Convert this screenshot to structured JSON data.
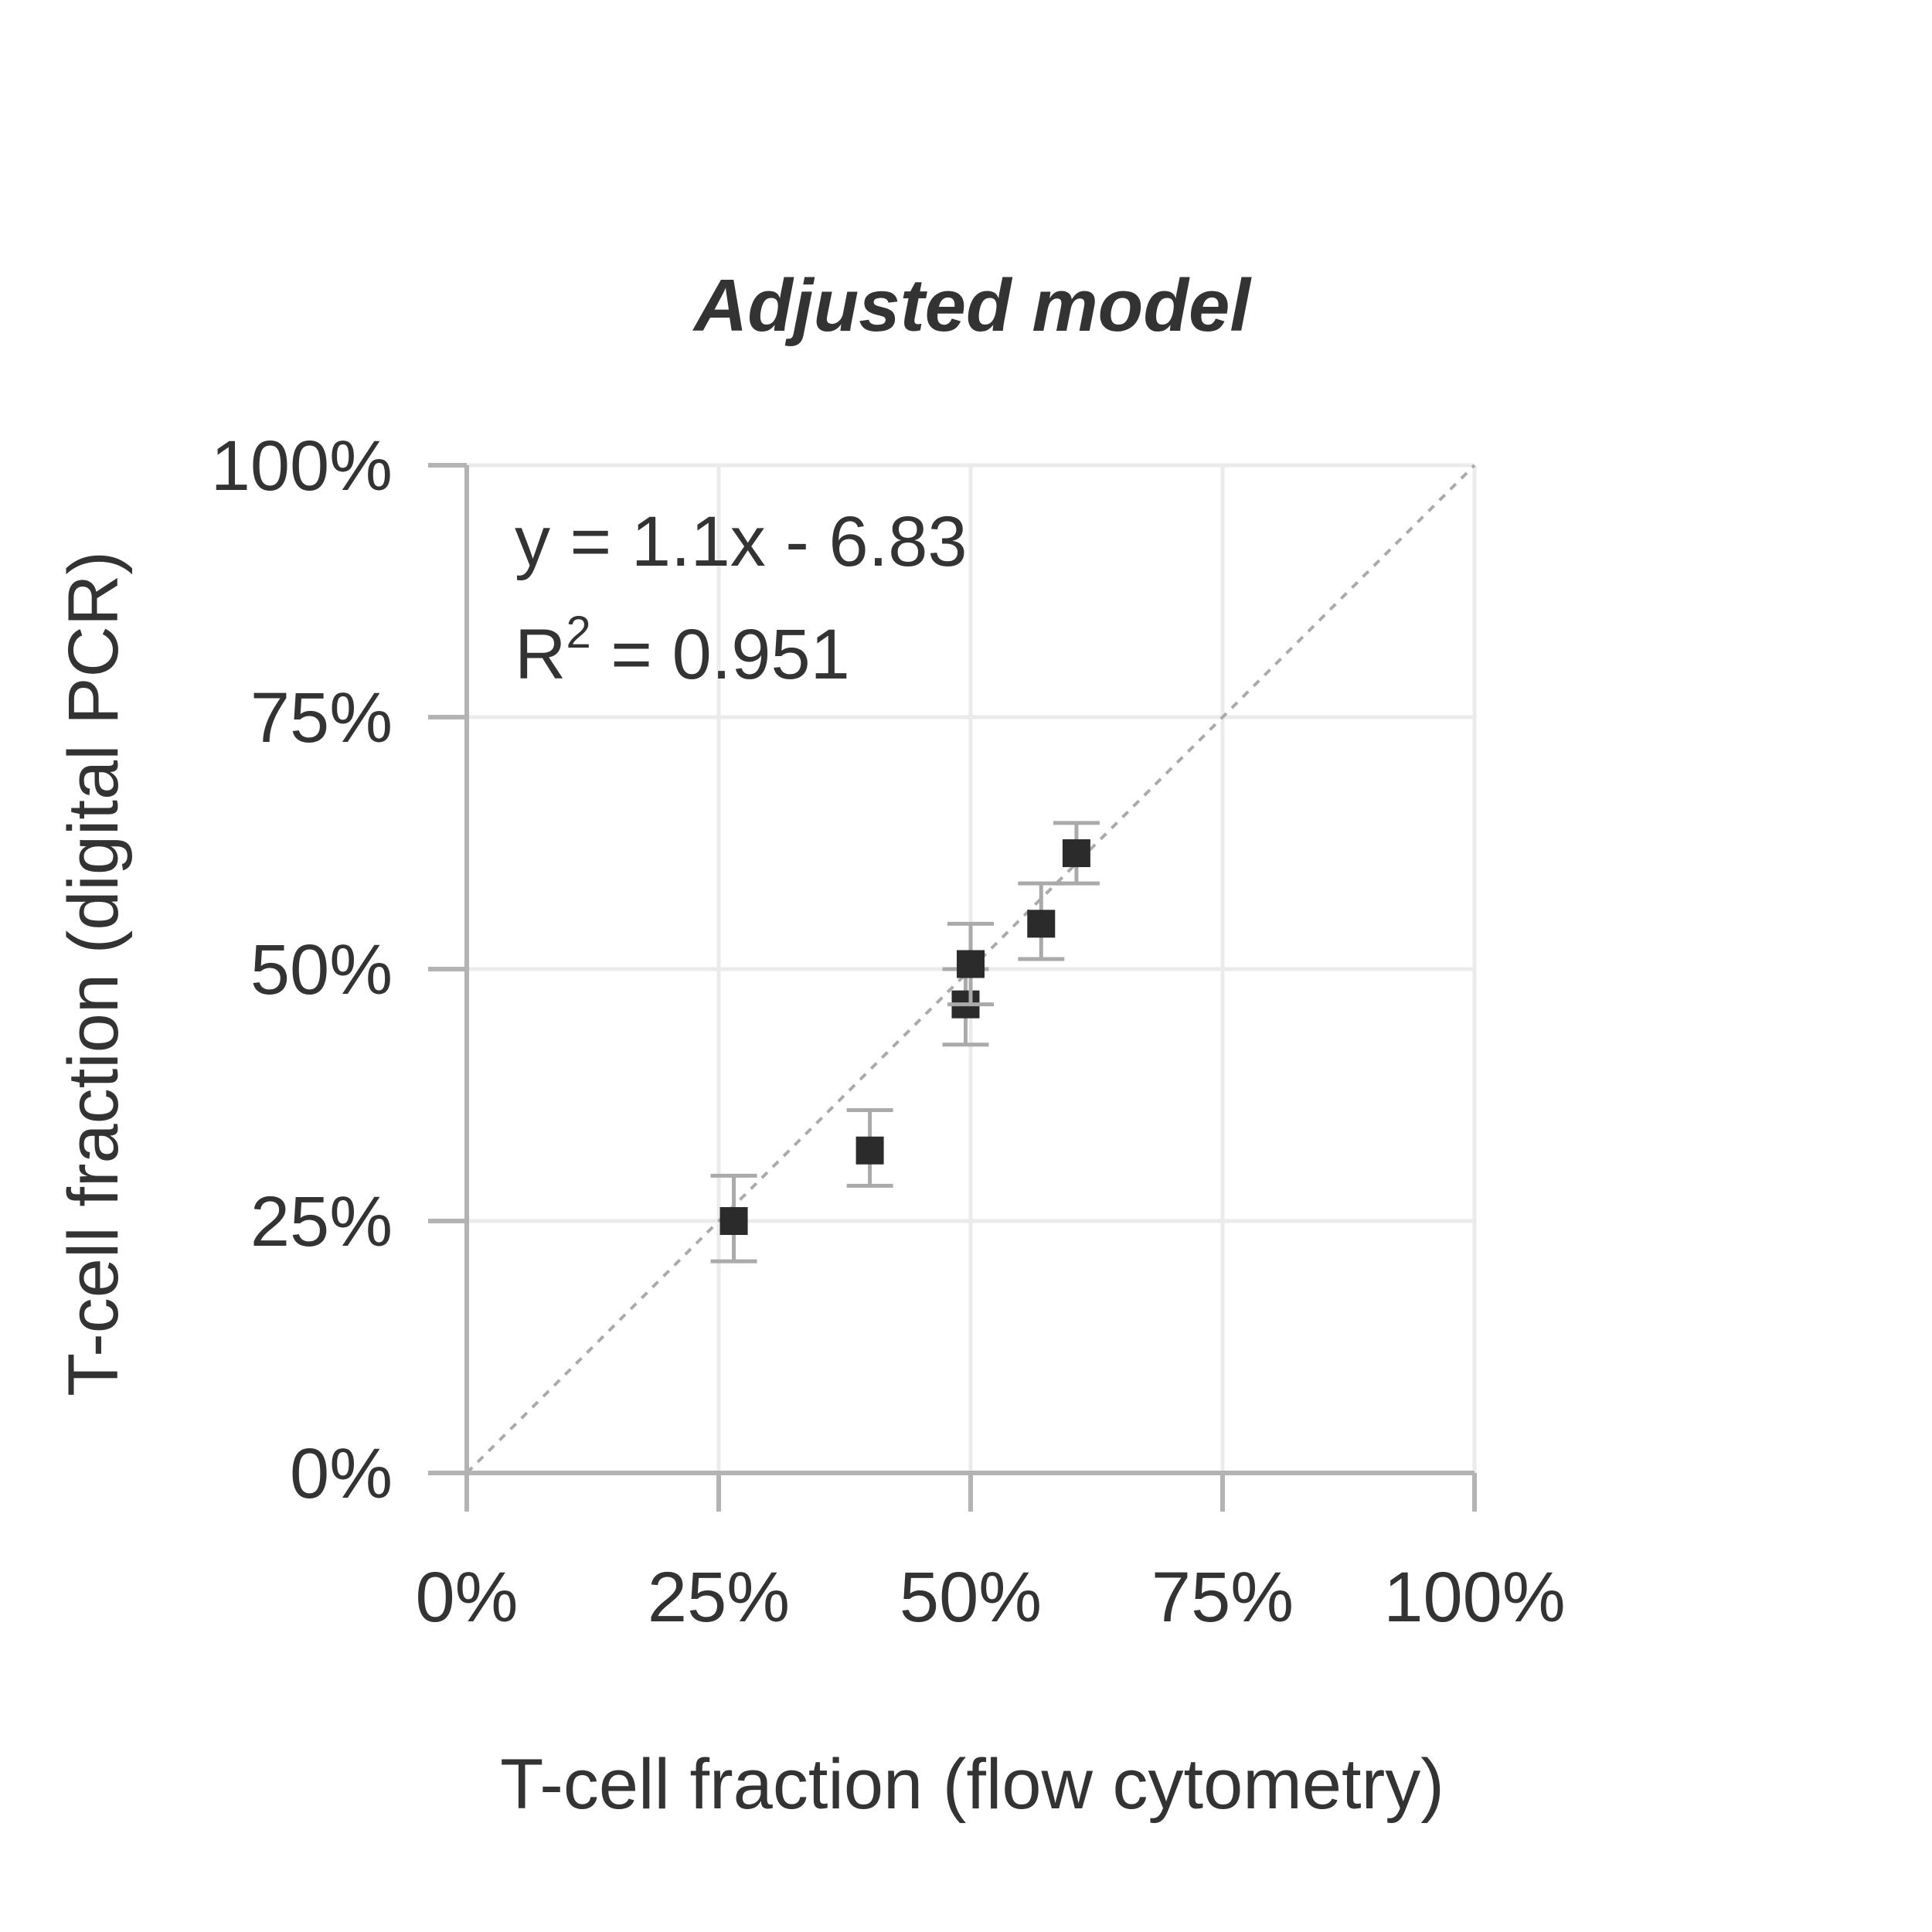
{
  "chart_data": {
    "type": "scatter",
    "title": "Adjusted model",
    "xlabel": "T-cell fraction (flow cytometry)",
    "ylabel": "T-cell fraction (digital PCR)",
    "xlim": [
      0,
      100
    ],
    "ylim": [
      0,
      100
    ],
    "x_ticks": [
      "0%",
      "25%",
      "50%",
      "75%",
      "100%"
    ],
    "y_ticks": [
      "0%",
      "25%",
      "50%",
      "75%",
      "100%"
    ],
    "tick_values": [
      0,
      25,
      50,
      75,
      100
    ],
    "grid": true,
    "identity_line": true,
    "annotation": {
      "equation": "y = 1.1x - 6.83",
      "r2_prefix": "R",
      "r2_sup": "2",
      "r2_value": " = 0.951"
    },
    "points": [
      {
        "x": 26.5,
        "y": 25.0,
        "err_low": 21.0,
        "err_high": 29.5
      },
      {
        "x": 40.0,
        "y": 32.0,
        "err_low": 28.5,
        "err_high": 36.0
      },
      {
        "x": 49.5,
        "y": 46.5,
        "err_low": 42.5,
        "err_high": 50.0
      },
      {
        "x": 50.0,
        "y": 50.5,
        "err_low": 46.5,
        "err_high": 54.5
      },
      {
        "x": 57.0,
        "y": 54.5,
        "err_low": 51.0,
        "err_high": 58.5
      },
      {
        "x": 60.5,
        "y": 61.5,
        "err_low": 58.5,
        "err_high": 64.5
      }
    ],
    "colors": {
      "marker": "#2b2b2b",
      "error_bar": "#aaaaaa",
      "grid": "#ebebeb",
      "axis": "#b3b3b3",
      "identity": "#aaaaaa",
      "text": "#333333"
    }
  }
}
